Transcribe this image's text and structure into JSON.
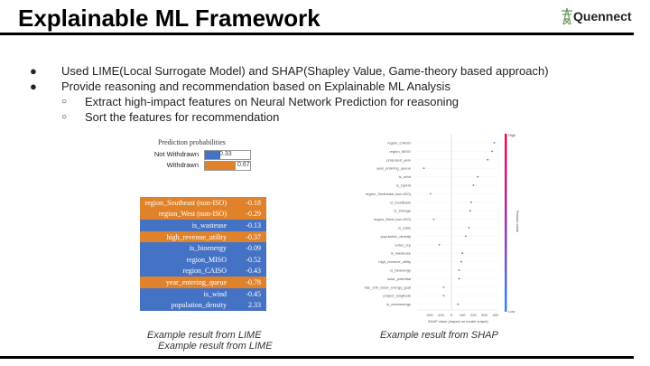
{
  "title": "Explainable ML Framework",
  "logo": "Quennect",
  "bullets": [
    "Used LIME(Local Surrogate Model) and SHAP(Shapley Value, Game-theory based approach)",
    "Provide reasoning and recommendation based on Explainable ML Analysis"
  ],
  "subbullets": [
    "Extract high-impact features on Neural Network Prediction for reasoning",
    "Sort the features for recommendation"
  ],
  "lime": {
    "pred_title": "Prediction probabilities",
    "preds": [
      {
        "label": "Not Withdrawn",
        "value": "0.33",
        "frac": 0.33,
        "color": "#4472c4"
      },
      {
        "label": "Withdrawn",
        "value": "0.67",
        "frac": 0.67,
        "color": "#e0822a"
      }
    ],
    "rows": [
      {
        "name": "region_Southeast (non-ISO)",
        "value": "-0.18",
        "cls": "o"
      },
      {
        "name": "region_West (non-ISO)",
        "value": "-0.29",
        "cls": "o"
      },
      {
        "name": "is_wasteuse",
        "value": "-0.13",
        "cls": "b"
      },
      {
        "name": "high_revenue_utility",
        "value": "-0.37",
        "cls": "o"
      },
      {
        "name": "is_bioenergy",
        "value": "-0.09",
        "cls": "b"
      },
      {
        "name": "region_MISO",
        "value": "-0.52",
        "cls": "b"
      },
      {
        "name": "region_CAISO",
        "value": "-0.43",
        "cls": "b"
      },
      {
        "name": "year_entering_queue",
        "value": "-0.78",
        "cls": "o"
      },
      {
        "name": "is_wind",
        "value": "-0.45",
        "cls": "b"
      },
      {
        "name": "population_density",
        "value": "2.33",
        "cls": "b"
      }
    ],
    "caption1": "Example result from LIME",
    "caption2": "Example result from LIME"
  },
  "chart_data": {
    "type": "scatter",
    "title": "",
    "xlabel": "SHAP value (impact on model output)",
    "xticks": [
      -200,
      -100,
      0,
      100,
      200,
      300,
      400
    ],
    "xlim": [
      -300,
      420
    ],
    "colorbar": {
      "label": "Feature value",
      "high": "High",
      "low": "Low"
    },
    "features": [
      "region_CAISO",
      "region_MISO",
      "proposed_year",
      "year_entering_queue",
      "is_wind",
      "is_hybrid",
      "region_Southeast (non-ISO)",
      "is_fossilfuels",
      "is_storage",
      "region_West (non-ISO)",
      "is_solar",
      "population_density",
      "votes_rep",
      "is_wasteuse",
      "high_revenue_utility",
      "is_bioenergy",
      "solar_potential",
      "has_100_clean_energy_goal",
      "project_longitude",
      "is_cleanenergy"
    ],
    "values": [
      390,
      370,
      330,
      -250,
      240,
      200,
      -190,
      180,
      170,
      -160,
      160,
      130,
      -110,
      100,
      90,
      70,
      70,
      -70,
      -70,
      60
    ]
  },
  "shap_caption": "Example result from SHAP"
}
